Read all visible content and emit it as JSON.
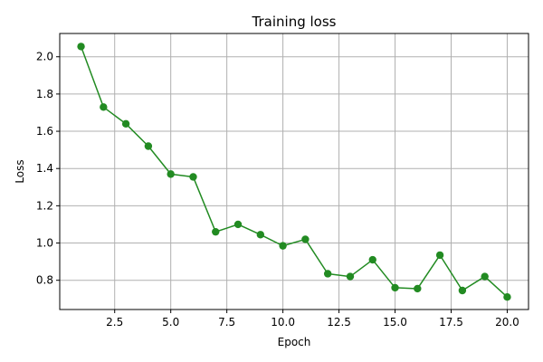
{
  "chart_data": {
    "type": "line",
    "title": "Training loss",
    "xlabel": "Epoch",
    "ylabel": "Loss",
    "xlim": [
      0.05,
      20.95
    ],
    "ylim": [
      0.643,
      2.125
    ],
    "xticks": [
      2.5,
      5.0,
      7.5,
      10.0,
      12.5,
      15.0,
      17.5,
      20.0
    ],
    "xtick_labels": [
      "2.5",
      "5.0",
      "7.5",
      "10.0",
      "12.5",
      "15.0",
      "17.5",
      "20.0"
    ],
    "yticks": [
      0.8,
      1.0,
      1.2,
      1.4,
      1.6,
      1.8,
      2.0
    ],
    "ytick_labels": [
      "0.8",
      "1.0",
      "1.2",
      "1.4",
      "1.6",
      "1.8",
      "2.0"
    ],
    "grid": true,
    "series": [
      {
        "color": "#228b22",
        "marker": "circle",
        "x": [
          1,
          2,
          3,
          4,
          5,
          6,
          7,
          8,
          9,
          10,
          11,
          12,
          13,
          14,
          15,
          16,
          17,
          18,
          19,
          20
        ],
        "y": [
          2.055,
          1.73,
          1.64,
          1.52,
          1.37,
          1.355,
          1.06,
          1.1,
          1.045,
          0.985,
          1.02,
          0.835,
          0.82,
          0.91,
          0.76,
          0.755,
          0.935,
          0.745,
          0.82,
          0.71
        ]
      }
    ]
  }
}
